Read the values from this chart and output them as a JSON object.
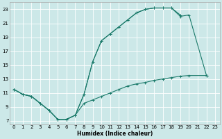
{
  "xlabel": "Humidex (Indice chaleur)",
  "bg_color": "#cce8e8",
  "grid_color": "#ffffff",
  "line_color": "#1a7a6a",
  "xlim": [
    -0.5,
    23.5
  ],
  "ylim": [
    6.5,
    24
  ],
  "xticks": [
    0,
    1,
    2,
    3,
    4,
    5,
    6,
    7,
    8,
    9,
    10,
    11,
    12,
    13,
    14,
    15,
    16,
    17,
    18,
    19,
    20,
    21,
    22,
    23
  ],
  "yticks": [
    7,
    9,
    11,
    13,
    15,
    17,
    19,
    21,
    23
  ],
  "curve1_x": [
    0,
    1,
    2,
    3,
    4,
    5,
    6,
    7,
    8,
    9,
    10,
    11,
    12,
    13,
    14,
    15,
    16,
    17,
    18,
    19
  ],
  "curve1_y": [
    11.5,
    10.8,
    10.5,
    9.5,
    8.5,
    7.2,
    7.2,
    7.8,
    10.8,
    15.5,
    18.5,
    19.5,
    20.5,
    21.5,
    22.5,
    23.0,
    23.2,
    23.2,
    23.2,
    22.2
  ],
  "curve2_x": [
    0,
    1,
    2,
    3,
    4,
    5,
    6,
    7,
    8,
    9,
    10,
    11,
    12,
    13,
    14,
    15,
    16,
    17,
    18,
    19,
    20,
    22
  ],
  "curve2_y": [
    11.5,
    10.8,
    10.5,
    9.5,
    8.5,
    7.2,
    7.2,
    7.8,
    10.8,
    15.5,
    18.5,
    19.5,
    20.5,
    21.5,
    22.5,
    23.0,
    23.2,
    23.2,
    23.2,
    22.0,
    22.2,
    13.5
  ],
  "curve3_x": [
    0,
    1,
    2,
    3,
    4,
    5,
    6,
    7,
    8,
    9,
    10,
    11,
    12,
    13,
    14,
    15,
    16,
    17,
    18,
    19,
    20,
    22
  ],
  "curve3_y": [
    11.5,
    10.8,
    10.5,
    9.5,
    8.5,
    7.2,
    7.2,
    7.8,
    9.5,
    10.0,
    10.5,
    11.0,
    11.5,
    12.0,
    12.3,
    12.5,
    12.8,
    13.0,
    13.2,
    13.4,
    13.5,
    13.5
  ]
}
